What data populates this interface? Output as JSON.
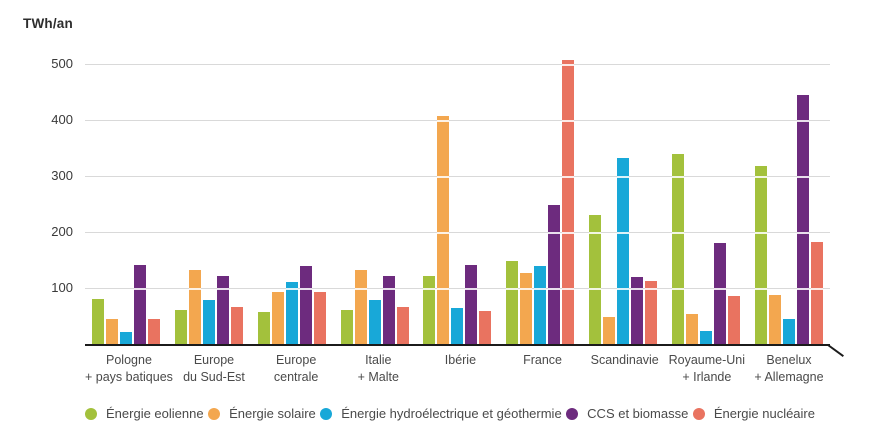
{
  "chart_data": {
    "type": "bar",
    "title": "",
    "ylabel": "TWh/an",
    "xlabel": "",
    "grid": true,
    "legend_position": "bottom",
    "ylim": [
      0,
      540
    ],
    "yticks": [
      100,
      200,
      300,
      400,
      500
    ],
    "categories": [
      "Pologne + pays batiques",
      "Europe du Sud-Est",
      "Europe centrale",
      "Italie + Malte",
      "Ibérie",
      "France",
      "Scandinavie",
      "Royaume-Uni + Irlande",
      "Benelux + Allemagne"
    ],
    "category_lines": [
      [
        "Pologne",
        "+ pays batiques"
      ],
      [
        "Europe",
        "du Sud-Est"
      ],
      [
        "Europe",
        "centrale"
      ],
      [
        "Italie",
        "+ Malte"
      ],
      [
        "Ibérie"
      ],
      [
        "France"
      ],
      [
        "Scandinavie"
      ],
      [
        "Royaume-Uni",
        "+ Irlande"
      ],
      [
        "Benelux",
        "+ Allemagne"
      ]
    ],
    "series": [
      {
        "name": "Énergie eolienne",
        "color": "#a3c13c",
        "values": [
          80,
          60,
          57,
          60,
          122,
          149,
          230,
          340,
          317
        ]
      },
      {
        "name": "Énergie solaire",
        "color": "#f3a74f",
        "values": [
          45,
          133,
          93,
          133,
          408,
          127,
          48,
          53,
          88
        ]
      },
      {
        "name": "Énergie hydroélectrique et géothermie",
        "color": "#18a8d8",
        "values": [
          22,
          78,
          110,
          78,
          64,
          139,
          333,
          24,
          45
        ]
      },
      {
        "name": "CCS et biomasse",
        "color": "#6d2b7e",
        "values": [
          141,
          121,
          140,
          121,
          141,
          248,
          120,
          181,
          444
        ]
      },
      {
        "name": "Énergie nucléaire",
        "color": "#e97360",
        "values": [
          45,
          66,
          93,
          66,
          59,
          508,
          113,
          86,
          183
        ]
      }
    ]
  }
}
